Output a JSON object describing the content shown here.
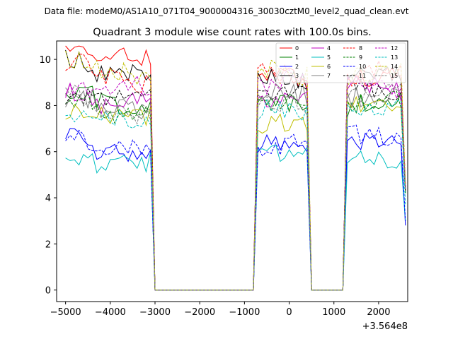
{
  "chart_data": {
    "type": "line",
    "suptitle": "Data file: modeM0/AS1A10_071T04_9000004316_30030cztM0_level2_quad_clean.evt",
    "title": "Quadrant 3 module wise count rates with 100.0s bins.",
    "xlabel": "",
    "ylabel": "",
    "x_offset_label": "+3.564e8",
    "xlim": [
      -5200,
      2650
    ],
    "ylim": [
      -0.5,
      10.8
    ],
    "xticks": [
      -5000,
      -4000,
      -3000,
      -2000,
      -1000,
      0,
      1000,
      2000
    ],
    "xtick_labels": [
      "−5000",
      "−4000",
      "−3000",
      "−2000",
      "−1000",
      "0",
      "1000",
      "2000"
    ],
    "yticks": [
      0,
      2,
      4,
      6,
      8,
      10
    ],
    "ytick_labels": [
      "0",
      "2",
      "4",
      "6",
      "8",
      "10"
    ],
    "legend_position": "top-right",
    "legend_columns": 4,
    "segments": [
      {
        "start": -5000,
        "end": -3100,
        "step": 100
      },
      {
        "start": -700,
        "end": 400,
        "step": 100
      },
      {
        "start": 1300,
        "end": 2500,
        "step": 100
      }
    ],
    "gap_zero_start": -2900,
    "gap_zero_end": 1100,
    "series": [
      {
        "name": "0",
        "color": "#ff0000",
        "dash": "solid",
        "levels": [
          9.9,
          9.0,
          9.4
        ],
        "end_value": 4.3
      },
      {
        "name": "1",
        "color": "#008000",
        "dash": "solid",
        "levels": [
          7.9,
          8.0,
          8.2
        ],
        "end_value": 4.2
      },
      {
        "name": "2",
        "color": "#0000ff",
        "dash": "solid",
        "levels": [
          6.0,
          6.2,
          6.4
        ],
        "end_value": 2.8
      },
      {
        "name": "3",
        "color": "#000000",
        "dash": "solid",
        "levels": [
          9.6,
          9.3,
          9.2
        ],
        "end_value": 4.4
      },
      {
        "name": "4",
        "color": "#bf00bf",
        "dash": "solid",
        "levels": [
          8.3,
          8.6,
          8.7
        ],
        "end_value": 4.4
      },
      {
        "name": "5",
        "color": "#00bfbf",
        "dash": "solid",
        "levels": [
          5.3,
          5.9,
          5.7
        ],
        "end_value": 3.0
      },
      {
        "name": "6",
        "color": "#bfbf00",
        "dash": "solid",
        "levels": [
          7.4,
          7.0,
          8.2
        ],
        "end_value": 4.2
      },
      {
        "name": "7",
        "color": "#808080",
        "dash": "solid",
        "levels": [
          7.7,
          8.4,
          8.6
        ],
        "end_value": 4.3
      },
      {
        "name": "8",
        "color": "#ff0000",
        "dash": "dashed",
        "levels": [
          9.2,
          9.3,
          9.4
        ],
        "end_value": 4.5
      },
      {
        "name": "9",
        "color": "#008000",
        "dash": "dashed",
        "levels": [
          7.8,
          8.3,
          8.0
        ],
        "end_value": 4.2
      },
      {
        "name": "10",
        "color": "#0000ff",
        "dash": "dashed",
        "levels": [
          6.3,
          6.5,
          6.5
        ],
        "end_value": 3.0
      },
      {
        "name": "11",
        "color": "#000000",
        "dash": "dashed",
        "levels": [
          8.3,
          8.6,
          8.7
        ],
        "end_value": 4.3
      },
      {
        "name": "12",
        "color": "#bf00bf",
        "dash": "dashed",
        "levels": [
          8.6,
          8.9,
          9.0
        ],
        "end_value": 4.5
      },
      {
        "name": "13",
        "color": "#00bfbf",
        "dash": "dashed",
        "levels": [
          7.2,
          7.6,
          7.9
        ],
        "end_value": 3.7
      },
      {
        "name": "14",
        "color": "#bfbf00",
        "dash": "dashed",
        "levels": [
          9.4,
          9.4,
          9.5
        ],
        "end_value": 4.6
      },
      {
        "name": "15",
        "color": "#808080",
        "dash": "dashed",
        "levels": [
          7.9,
          8.2,
          8.4
        ],
        "end_value": 4.3
      }
    ]
  }
}
